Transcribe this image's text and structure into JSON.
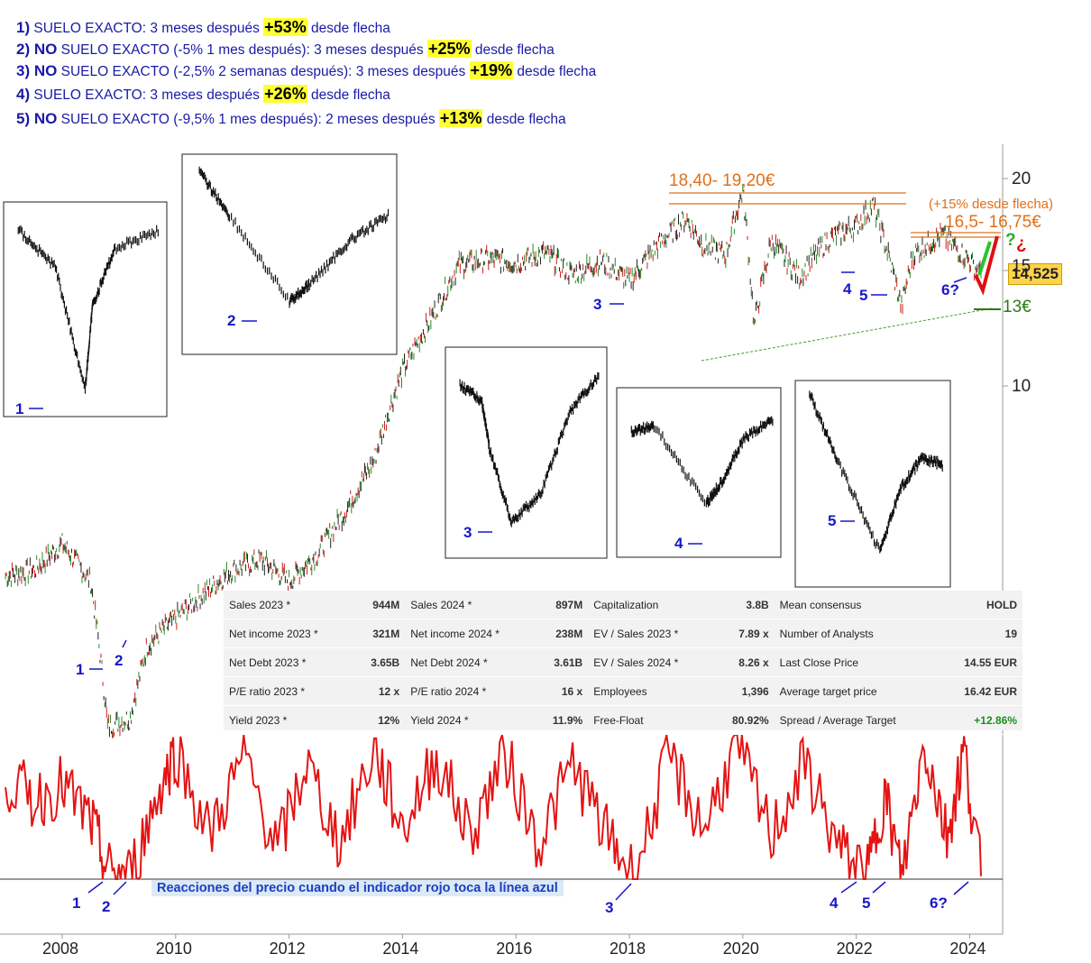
{
  "annotations": [
    {
      "num": "1)",
      "no": "",
      "text": "SUELO EXACTO:  3 meses después ",
      "gain": "+53%",
      "tail": " desde flecha"
    },
    {
      "num": "2)",
      "no": " NO",
      "text": " SUELO EXACTO (-5% 1 mes después):  3 meses después ",
      "gain": "+25%",
      "tail": " desde flecha"
    },
    {
      "num": "3)",
      "no": " NO",
      "text": " SUELO EXACTO (-2,5% 2 semanas después):  3 meses después ",
      "gain": "+19%",
      "tail": " desde flecha"
    },
    {
      "num": "4)",
      "no": "",
      "text": "SUELO EXACTO:  3 meses después ",
      "gain": "+26%",
      "tail": " desde flecha"
    },
    {
      "num": "5)",
      "no": " NO",
      "text": " SUELO EXACTO (-9,5% 1 mes después):  2 meses después ",
      "gain": "+13%",
      "tail": " desde flecha"
    }
  ],
  "levels": {
    "resistance1": "18,40- 19,20€",
    "resistance2_note": "(+15% desde flecha)",
    "resistance2": "16,5- 16,75€",
    "support": "13€",
    "last_price": "14,525",
    "question": "¿",
    "question2": "?"
  },
  "fundamentals": {
    "rows": [
      [
        {
          "k": "Sales 2023 *",
          "v": "944M"
        },
        {
          "k": "Sales 2024 *",
          "v": "897M"
        },
        {
          "k": "Capitalization",
          "v": "3.8B"
        },
        {
          "k": "Mean consensus",
          "v": "HOLD"
        }
      ],
      [
        {
          "k": "Net income 2023 *",
          "v": "321M"
        },
        {
          "k": "Net income 2024 *",
          "v": "238M"
        },
        {
          "k": "EV / Sales 2023 *",
          "v": "7.89 x"
        },
        {
          "k": "Number of Analysts",
          "v": "19"
        }
      ],
      [
        {
          "k": "Net Debt 2023 *",
          "v": "3.65B"
        },
        {
          "k": "Net Debt 2024 *",
          "v": "3.61B"
        },
        {
          "k": "EV / Sales 2024 *",
          "v": "8.26 x"
        },
        {
          "k": "Last Close Price",
          "v": "14.55 EUR"
        }
      ],
      [
        {
          "k": "P/E ratio 2023 *",
          "v": "12 x"
        },
        {
          "k": "P/E ratio 2024 *",
          "v": "16 x"
        },
        {
          "k": "Employees",
          "v": "1,396"
        },
        {
          "k": "Average target price",
          "v": "16.42 EUR"
        }
      ],
      [
        {
          "k": "Yield 2023 *",
          "v": "12%"
        },
        {
          "k": "Yield 2024 *",
          "v": "11.9%"
        },
        {
          "k": "Free-Float",
          "v": "80.92%"
        },
        {
          "k": "Spread / Average Target",
          "v": "+12.86%"
        }
      ]
    ]
  },
  "indicator_caption": "Reacciones del precio cuando el indicador rojo toca la línea azul",
  "chart_data": {
    "type": "line",
    "x_ticks": [
      "2008",
      "2010",
      "2012",
      "2014",
      "2016",
      "2018",
      "2020",
      "2022",
      "2024"
    ],
    "y_ticks": [
      "10",
      "15",
      "20"
    ],
    "y_scale": "log",
    "price_series": {
      "name": "",
      "x": [
        2007.0,
        2007.5,
        2008.0,
        2008.5,
        2008.8,
        2009.2,
        2009.5,
        2010.0,
        2010.5,
        2011.0,
        2011.5,
        2012.0,
        2012.5,
        2013.0,
        2013.5,
        2014.0,
        2014.5,
        2015.0,
        2015.5,
        2016.0,
        2016.5,
        2017.0,
        2017.5,
        2018.0,
        2018.5,
        2019.0,
        2019.3,
        2019.7,
        2020.0,
        2020.2,
        2020.5,
        2021.0,
        2021.5,
        2022.0,
        2022.3,
        2022.8,
        2023.0,
        2023.5,
        2024.0,
        2024.2
      ],
      "y": [
        5.3,
        5.4,
        5.9,
        5.2,
        3.2,
        3.3,
        4.2,
        4.6,
        5.0,
        5.4,
        5.6,
        5.2,
        5.7,
        6.6,
        7.8,
        10.5,
        12.5,
        15.0,
        15.3,
        15.1,
        15.6,
        14.5,
        15.2,
        14.2,
        16.0,
        17.5,
        16.0,
        15.5,
        19.2,
        12.2,
        16.2,
        14.4,
        16.3,
        17.1,
        18.3,
        13.0,
        15.5,
        16.6,
        15.2,
        14.5
      ]
    },
    "indicator_series": {
      "name": "",
      "x": [
        2007.0,
        2007.5,
        2008.0,
        2008.5,
        2008.8,
        2009.2,
        2009.7,
        2010.0,
        2010.6,
        2011.2,
        2011.8,
        2012.3,
        2012.9,
        2013.5,
        2014.0,
        2014.6,
        2015.2,
        2015.8,
        2016.4,
        2017.0,
        2017.6,
        2018.1,
        2018.7,
        2019.3,
        2019.9,
        2020.5,
        2021.1,
        2021.7,
        2022.2,
        2022.5,
        2022.8,
        2023.2,
        2023.6,
        2023.9,
        2024.2
      ],
      "y": [
        70,
        55,
        65,
        40,
        5,
        2,
        60,
        90,
        30,
        85,
        20,
        80,
        25,
        90,
        35,
        85,
        30,
        88,
        25,
        80,
        30,
        2,
        85,
        35,
        92,
        30,
        80,
        20,
        2,
        60,
        1,
        95,
        30,
        90,
        2
      ]
    },
    "lows_marked": [
      "1",
      "2",
      "3",
      "4",
      "5",
      "6?"
    ]
  }
}
